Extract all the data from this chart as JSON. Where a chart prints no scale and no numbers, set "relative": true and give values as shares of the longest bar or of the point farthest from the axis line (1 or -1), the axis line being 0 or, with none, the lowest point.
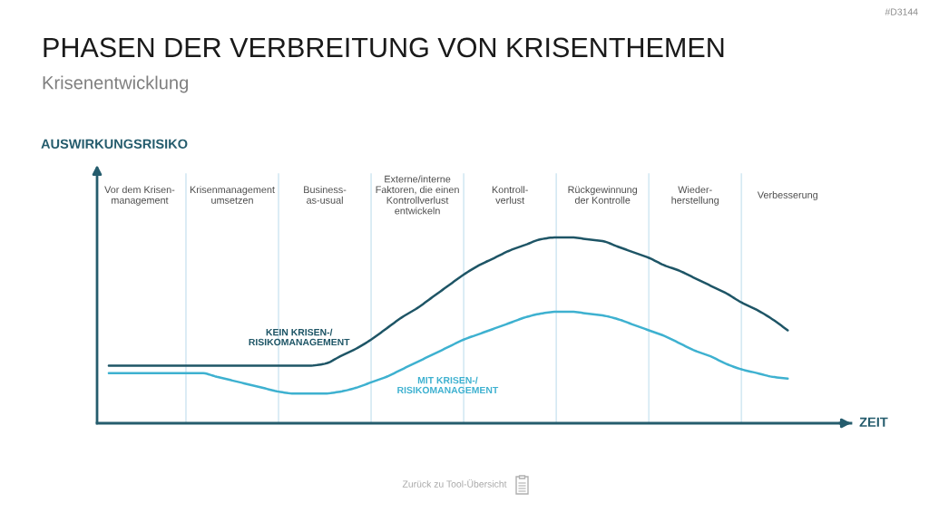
{
  "chart_data": {
    "type": "line",
    "title": "PHASEN DER VERBREITUNG VON KRISENTHEMEN",
    "subtitle": "Krisenentwicklung",
    "ylabel": "AUSWIRKUNGSRISIKO",
    "xlabel": "ZEIT",
    "relative": true,
    "categories": [
      null,
      null,
      "Vor dem Krisen-\nmanagement",
      null,
      null,
      null,
      null,
      null,
      "Krisenmanagement\numsetzen",
      null,
      null,
      null,
      null,
      null,
      "Business-\nas-usual",
      null,
      null,
      null,
      null,
      null,
      "Externe/interne\nFaktoren, die einen\nKontrollverlust\nentwickeln",
      null,
      null,
      null,
      null,
      null,
      "Kontroll-\nverlust",
      null,
      null,
      null,
      null,
      null,
      "Rückgewinnung\nder Kontrolle",
      null,
      null,
      null,
      null,
      null,
      "Wieder-\nherstellung",
      null,
      null,
      null,
      null,
      null,
      "Verbesserung"
    ],
    "series": [
      {
        "name": "KEIN KRISEN-/\nRISIKOMANAGEMENT",
        "color": "#1e5566",
        "values": [
          0.31,
          0.31,
          0.31,
          0.31,
          0.31,
          0.31,
          0.31,
          0.31,
          0.31,
          0.31,
          0.31,
          0.31,
          0.31,
          0.31,
          0.32,
          0.36,
          0.4,
          0.45,
          0.51,
          0.57,
          0.62,
          0.68,
          0.74,
          0.8,
          0.85,
          0.89,
          0.93,
          0.96,
          0.99,
          1.0,
          1.0,
          0.99,
          0.98,
          0.95,
          0.92,
          0.89,
          0.85,
          0.82,
          0.78,
          0.74,
          0.7,
          0.65,
          0.61,
          0.56,
          0.5
        ]
      },
      {
        "name": "MIT KRISEN-/\nRISIKOMANAGEMENT",
        "color": "#3eb1d0",
        "values": [
          0.27,
          0.27,
          0.27,
          0.27,
          0.27,
          0.27,
          0.27,
          0.25,
          0.23,
          0.21,
          0.19,
          0.17,
          0.16,
          0.16,
          0.16,
          0.17,
          0.19,
          0.22,
          0.25,
          0.29,
          0.33,
          0.37,
          0.41,
          0.45,
          0.48,
          0.51,
          0.54,
          0.57,
          0.59,
          0.6,
          0.6,
          0.59,
          0.58,
          0.56,
          0.53,
          0.5,
          0.47,
          0.43,
          0.39,
          0.36,
          0.32,
          0.29,
          0.27,
          0.25,
          0.24
        ]
      }
    ],
    "annotations": [
      "#D3144",
      "Zurück zu Tool-Übersicht"
    ],
    "legend": false,
    "grid": "x",
    "tick_labels": "x"
  }
}
